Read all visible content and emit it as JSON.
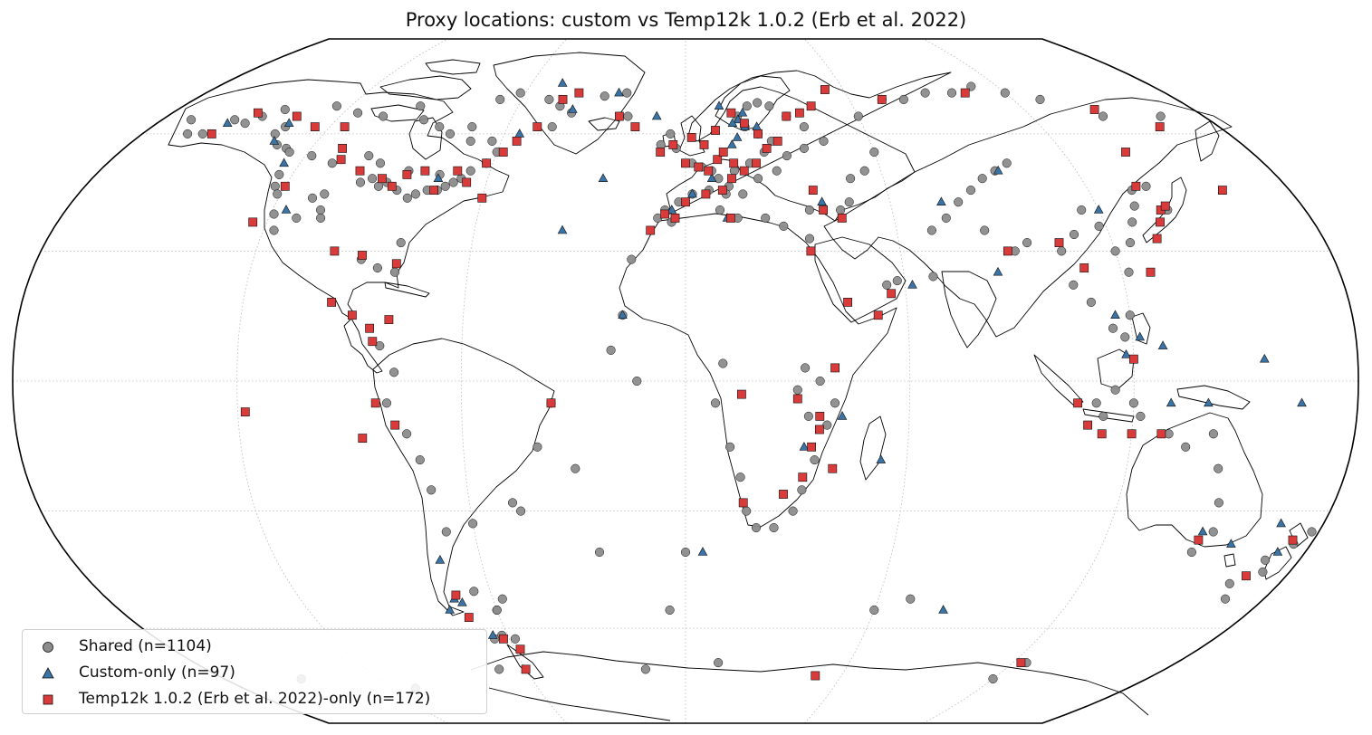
{
  "title": "Proxy locations: custom vs Temp12k 1.0.2 (Erb et al. 2022)",
  "projection": "Robinson",
  "colors": {
    "shared": "#8c8c8c",
    "custom": "#3a74a6",
    "temp12k": "#d93a3a",
    "marker_edge": "#111111",
    "coast": "#000000",
    "grid": "#b8b8b8"
  },
  "legend": {
    "shared": "Shared (n=1104)",
    "custom": "Custom-only (n=97)",
    "temp12k": "Temp12k 1.0.2 (Erb et al. 2022)-only (n=172)"
  },
  "map_data": {
    "shared": [
      [
        -155,
        64
      ],
      [
        -150,
        63
      ],
      [
        -147,
        65
      ],
      [
        -142,
        67
      ],
      [
        -136,
        60
      ],
      [
        -132,
        57
      ],
      [
        -128,
        56
      ],
      [
        -124,
        49
      ],
      [
        -123,
        46
      ],
      [
        -121,
        44
      ],
      [
        -119,
        39
      ],
      [
        -117,
        35
      ],
      [
        -112,
        38
      ],
      [
        -110,
        43
      ],
      [
        -106,
        40
      ],
      [
        -105,
        38
      ],
      [
        -107,
        44
      ],
      [
        -98,
        47
      ],
      [
        -95,
        48
      ],
      [
        -92,
        46
      ],
      [
        -90,
        47
      ],
      [
        -86,
        45
      ],
      [
        -82,
        43
      ],
      [
        -80,
        44
      ],
      [
        -77,
        45
      ],
      [
        -74,
        45
      ],
      [
        -72,
        46
      ],
      [
        -70,
        47
      ],
      [
        -68,
        48
      ],
      [
        -66,
        50
      ],
      [
        -75,
        49
      ],
      [
        -85,
        50
      ],
      [
        -95,
        52
      ],
      [
        -100,
        54
      ],
      [
        -110,
        52
      ],
      [
        -118,
        54
      ],
      [
        -126,
        55
      ],
      [
        -135,
        62
      ],
      [
        -62,
        52
      ],
      [
        -60,
        55
      ],
      [
        -63,
        58
      ],
      [
        -70,
        58
      ],
      [
        -72,
        62
      ],
      [
        -78,
        60
      ],
      [
        -83,
        62
      ],
      [
        -90,
        64
      ],
      [
        -95,
        68
      ],
      [
        -105,
        65
      ],
      [
        -115,
        66
      ],
      [
        -125,
        68
      ],
      [
        -68,
        70
      ],
      [
        -62,
        72
      ],
      [
        -50,
        70
      ],
      [
        -45,
        68
      ],
      [
        -40,
        66
      ],
      [
        -30,
        71
      ],
      [
        -22,
        72
      ],
      [
        -20,
        65
      ],
      [
        -45,
        62
      ],
      [
        -80,
        32
      ],
      [
        -85,
        26
      ],
      [
        -90,
        28
      ],
      [
        -80,
        25
      ],
      [
        -82,
        8
      ],
      [
        -78,
        2
      ],
      [
        -80,
        -5
      ],
      [
        -75,
        -12
      ],
      [
        -72,
        -18
      ],
      [
        -70,
        -25
      ],
      [
        -68,
        -35
      ],
      [
        -60,
        -33
      ],
      [
        -48,
        -28
      ],
      [
        -46,
        -30
      ],
      [
        -36,
        -5
      ],
      [
        -40,
        -15
      ],
      [
        -65,
        -50
      ],
      [
        -60,
        -55
      ],
      [
        -57,
        -52
      ],
      [
        -62,
        -62
      ],
      [
        -58,
        -63
      ],
      [
        -5,
        60
      ],
      [
        -8,
        57
      ],
      [
        -3,
        56
      ],
      [
        2,
        52
      ],
      [
        5,
        51
      ],
      [
        8,
        50
      ],
      [
        10,
        48
      ],
      [
        13,
        46
      ],
      [
        15,
        50
      ],
      [
        20,
        52
      ],
      [
        25,
        55
      ],
      [
        28,
        58
      ],
      [
        24,
        60
      ],
      [
        20,
        62
      ],
      [
        18,
        65
      ],
      [
        22,
        68
      ],
      [
        26,
        69
      ],
      [
        30,
        68
      ],
      [
        35,
        65
      ],
      [
        40,
        62
      ],
      [
        45,
        58
      ],
      [
        38,
        56
      ],
      [
        32,
        54
      ],
      [
        28,
        50
      ],
      [
        22,
        48
      ],
      [
        17,
        44
      ],
      [
        12,
        44
      ],
      [
        7,
        45
      ],
      [
        2,
        44
      ],
      [
        -2,
        42
      ],
      [
        -6,
        40
      ],
      [
        -8,
        38
      ],
      [
        -4,
        37
      ],
      [
        10,
        40
      ],
      [
        15,
        38
      ],
      [
        23,
        38
      ],
      [
        28,
        36
      ],
      [
        35,
        33
      ],
      [
        36,
        40
      ],
      [
        45,
        40
      ],
      [
        -15,
        28
      ],
      [
        -17,
        15
      ],
      [
        -20,
        7
      ],
      [
        -13,
        0
      ],
      [
        10,
        4
      ],
      [
        8,
        -5
      ],
      [
        12,
        -15
      ],
      [
        15,
        -22
      ],
      [
        17,
        -30
      ],
      [
        20,
        -34
      ],
      [
        25,
        -34
      ],
      [
        30,
        -30
      ],
      [
        32,
        -25
      ],
      [
        35,
        -18
      ],
      [
        38,
        -10
      ],
      [
        40,
        -5
      ],
      [
        36,
        0
      ],
      [
        32,
        3
      ],
      [
        30,
        -2
      ],
      [
        33,
        -8
      ],
      [
        55,
        22
      ],
      [
        58,
        23
      ],
      [
        68,
        24
      ],
      [
        70,
        35
      ],
      [
        75,
        38
      ],
      [
        80,
        42
      ],
      [
        85,
        45
      ],
      [
        90,
        48
      ],
      [
        95,
        50
      ],
      [
        100,
        52
      ],
      [
        85,
        35
      ],
      [
        92,
        30
      ],
      [
        96,
        32
      ],
      [
        105,
        30
      ],
      [
        110,
        34
      ],
      [
        115,
        40
      ],
      [
        118,
        36
      ],
      [
        120,
        30
      ],
      [
        122,
        25
      ],
      [
        125,
        32
      ],
      [
        128,
        37
      ],
      [
        131,
        41
      ],
      [
        133,
        45
      ],
      [
        138,
        46
      ],
      [
        140,
        40
      ],
      [
        106,
        22
      ],
      [
        110,
        18
      ],
      [
        115,
        12
      ],
      [
        118,
        10
      ],
      [
        120,
        15
      ],
      [
        115,
        -2
      ],
      [
        110,
        -5
      ],
      [
        112,
        -8
      ],
      [
        120,
        -5
      ],
      [
        122,
        -8
      ],
      [
        130,
        -12
      ],
      [
        135,
        -15
      ],
      [
        142,
        -12
      ],
      [
        145,
        -20
      ],
      [
        148,
        -28
      ],
      [
        150,
        -35
      ],
      [
        147,
        -40
      ],
      [
        170,
        -42
      ],
      [
        172,
        -45
      ],
      [
        165,
        -48
      ],
      [
        175,
        -38
      ],
      [
        178,
        -35
      ],
      [
        168,
        -52
      ],
      [
        0,
        -40
      ],
      [
        -30,
        -20
      ],
      [
        -25,
        -40
      ],
      [
        -5,
        -55
      ],
      [
        -60,
        -55
      ],
      [
        -65,
        -63
      ],
      [
        12,
        -70
      ],
      [
        60,
        -55
      ],
      [
        70,
        -52
      ],
      [
        125,
        -70
      ],
      [
        120,
        -75
      ],
      [
        -150,
        -75
      ],
      [
        -110,
        -78
      ],
      [
        -70,
        -72
      ],
      [
        -15,
        -72
      ],
      [
        60,
        65
      ],
      [
        72,
        70
      ],
      [
        80,
        70
      ],
      [
        90,
        72
      ],
      [
        100,
        72
      ],
      [
        110,
        74
      ],
      [
        120,
        72
      ],
      [
        130,
        70
      ],
      [
        145,
        65
      ],
      [
        165,
        65
      ],
      [
        -170,
        64
      ],
      [
        -165,
        60
      ],
      [
        -160,
        60
      ],
      [
        60,
        55
      ],
      [
        55,
        50
      ],
      [
        50,
        48
      ],
      [
        48,
        42
      ]
    ],
    "custom": [
      [
        -156,
        63
      ],
      [
        -135,
        63
      ],
      [
        -134,
        58
      ],
      [
        -116,
        40
      ],
      [
        -125,
        52
      ],
      [
        -75,
        48
      ],
      [
        -55,
        60
      ],
      [
        -40,
        67
      ],
      [
        -25,
        72
      ],
      [
        -48,
        75
      ],
      [
        -10,
        65
      ],
      [
        -25,
        48
      ],
      [
        -35,
        35
      ],
      [
        -17,
        15
      ],
      [
        12,
        68
      ],
      [
        20,
        66
      ],
      [
        18,
        64
      ],
      [
        24,
        62
      ],
      [
        16,
        63
      ],
      [
        10,
        61
      ],
      [
        17,
        59
      ],
      [
        15,
        57
      ],
      [
        20,
        62
      ],
      [
        8,
        48
      ],
      [
        2,
        44
      ],
      [
        -4,
        40
      ],
      [
        12,
        38
      ],
      [
        45,
        38
      ],
      [
        40,
        42
      ],
      [
        62,
        22
      ],
      [
        86,
        25
      ],
      [
        75,
        42
      ],
      [
        96,
        50
      ],
      [
        120,
        40
      ],
      [
        116,
        15
      ],
      [
        118,
        6
      ],
      [
        122,
        10
      ],
      [
        128,
        8
      ],
      [
        130,
        -5
      ],
      [
        140,
        -5
      ],
      [
        155,
        5
      ],
      [
        165,
        -5
      ],
      [
        147,
        -35
      ],
      [
        157,
        -38
      ],
      [
        -72,
        -42
      ],
      [
        -72,
        -52
      ],
      [
        -70,
        -53
      ],
      [
        -75,
        -55
      ],
      [
        -65,
        -62
      ],
      [
        32,
        -15
      ],
      [
        53,
        -18
      ],
      [
        42,
        -8
      ],
      [
        5,
        -40
      ],
      [
        82,
        -55
      ],
      [
        168,
        -33
      ],
      [
        172,
        -40
      ]
    ],
    "temp12k": [
      [
        -157,
        60
      ],
      [
        -150,
        66
      ],
      [
        -135,
        65
      ],
      [
        -125,
        62
      ],
      [
        -115,
        62
      ],
      [
        -110,
        56
      ],
      [
        -108,
        53
      ],
      [
        -100,
        50
      ],
      [
        -92,
        48
      ],
      [
        -88,
        46
      ],
      [
        -85,
        49
      ],
      [
        -80,
        50
      ],
      [
        -75,
        45
      ],
      [
        -70,
        50
      ],
      [
        -66,
        47
      ],
      [
        -60,
        43
      ],
      [
        -62,
        52
      ],
      [
        -58,
        55
      ],
      [
        -55,
        58
      ],
      [
        -50,
        62
      ],
      [
        -45,
        70
      ],
      [
        -40,
        72
      ],
      [
        -23,
        65
      ],
      [
        -17,
        62
      ],
      [
        -120,
        46
      ],
      [
        -124,
        37
      ],
      [
        -98,
        30
      ],
      [
        -96,
        18
      ],
      [
        -90,
        15
      ],
      [
        -85,
        12
      ],
      [
        -80,
        14
      ],
      [
        -84,
        9
      ],
      [
        -83,
        -5
      ],
      [
        -78,
        -10
      ],
      [
        -36,
        -5
      ],
      [
        -71,
        -51
      ],
      [
        -70,
        -57
      ],
      [
        -62,
        -63
      ],
      [
        -8,
        55
      ],
      [
        -4,
        57
      ],
      [
        0,
        52
      ],
      [
        4,
        51
      ],
      [
        7,
        50
      ],
      [
        10,
        53
      ],
      [
        12,
        55
      ],
      [
        15,
        52
      ],
      [
        18,
        50
      ],
      [
        22,
        52
      ],
      [
        26,
        56
      ],
      [
        30,
        58
      ],
      [
        24,
        60
      ],
      [
        20,
        63
      ],
      [
        16,
        66
      ],
      [
        10,
        61
      ],
      [
        6,
        57
      ],
      [
        2,
        59
      ],
      [
        14,
        48
      ],
      [
        11,
        45
      ],
      [
        6,
        44
      ],
      [
        0,
        42
      ],
      [
        -3,
        38
      ],
      [
        -6,
        39
      ],
      [
        -10,
        35
      ],
      [
        13,
        38
      ],
      [
        40,
        40
      ],
      [
        45,
        38
      ],
      [
        38,
        45
      ],
      [
        35,
        30
      ],
      [
        35,
        65
      ],
      [
        40,
        66
      ],
      [
        45,
        68
      ],
      [
        53,
        73
      ],
      [
        72,
        70
      ],
      [
        105,
        72
      ],
      [
        145,
        67
      ],
      [
        160,
        62
      ],
      [
        44,
        18
      ],
      [
        52,
        15
      ],
      [
        56,
        20
      ],
      [
        40,
        3
      ],
      [
        30,
        -4
      ],
      [
        36,
        -8
      ],
      [
        34,
        -15
      ],
      [
        32,
        -22
      ],
      [
        27,
        -26
      ],
      [
        16,
        -28
      ],
      [
        40,
        -20
      ],
      [
        36,
        -11
      ],
      [
        15,
        -3
      ],
      [
        90,
        30
      ],
      [
        105,
        32
      ],
      [
        110,
        26
      ],
      [
        128,
        25
      ],
      [
        133,
        33
      ],
      [
        136,
        37
      ],
      [
        138,
        40
      ],
      [
        135,
        46
      ],
      [
        140,
        41
      ],
      [
        140,
        55
      ],
      [
        160,
        45
      ],
      [
        120,
        5
      ],
      [
        105,
        -5
      ],
      [
        108,
        -10
      ],
      [
        112,
        -12
      ],
      [
        120,
        -12
      ],
      [
        128,
        -12
      ],
      [
        147,
        -37
      ],
      [
        174,
        -37
      ],
      [
        168,
        -46
      ],
      [
        123,
        -70
      ],
      [
        50,
        -74
      ],
      [
        -58,
        -66
      ],
      [
        -60,
        -72
      ],
      [
        -87,
        -13
      ],
      [
        -118,
        -7
      ],
      [
        -80,
        27
      ],
      [
        -90,
        29
      ]
    ]
  }
}
